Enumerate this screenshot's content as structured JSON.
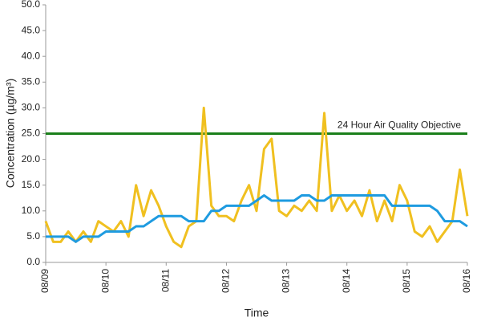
{
  "chart_data": {
    "type": "line",
    "y_label": "Concentration (µg/m³)",
    "x_label": "Time",
    "x": [
      0,
      3,
      6,
      9,
      12,
      15,
      18,
      21,
      24,
      27,
      30,
      33,
      36,
      39,
      42,
      45,
      48,
      51,
      54,
      57,
      60,
      63,
      66,
      69,
      72,
      75,
      78,
      81,
      84,
      87,
      90,
      93,
      96,
      99,
      102,
      105,
      108,
      111,
      114,
      117,
      120,
      123,
      126,
      129,
      132,
      135,
      138,
      141,
      144,
      147,
      150,
      153,
      156,
      159,
      162,
      165,
      168
    ],
    "series": [
      {
        "color": "#f0c020",
        "values": [
          8,
          4,
          4,
          6,
          4,
          6,
          4,
          8,
          7,
          6,
          8,
          5,
          15,
          9,
          14,
          11,
          7,
          4,
          3,
          7,
          8,
          30,
          11,
          9,
          9,
          8,
          12,
          15,
          10,
          22,
          24,
          10,
          9,
          11,
          10,
          12,
          10,
          29,
          10,
          13,
          10,
          12,
          9,
          14,
          8,
          12,
          8,
          15,
          12,
          6,
          5,
          7,
          4,
          6,
          8,
          18,
          9
        ]
      },
      {
        "color": "#1e9be0",
        "values": [
          5,
          5,
          5,
          5,
          4,
          5,
          5,
          5,
          6,
          6,
          6,
          6,
          7,
          7,
          8,
          9,
          9,
          9,
          9,
          8,
          8,
          8,
          10,
          10,
          11,
          11,
          11,
          11,
          12,
          13,
          12,
          12,
          12,
          12,
          13,
          13,
          12,
          12,
          13,
          13,
          13,
          13,
          13,
          13,
          13,
          13,
          11,
          11,
          11,
          11,
          11,
          11,
          10,
          8,
          8,
          8,
          7
        ]
      }
    ],
    "reference_line": {
      "value": 25,
      "label": "24 Hour Air Quality Objective",
      "color": "#1a7f1a"
    },
    "xlim": [
      0,
      168
    ],
    "xticks": [
      {
        "value": 0,
        "label": "08/09"
      },
      {
        "value": 24,
        "label": "08/10"
      },
      {
        "value": 48,
        "label": "08/11"
      },
      {
        "value": 72,
        "label": "08/12"
      },
      {
        "value": 96,
        "label": "08/13"
      },
      {
        "value": 120,
        "label": "08/14"
      },
      {
        "value": 144,
        "label": "08/15"
      },
      {
        "value": 168,
        "label": "08/16"
      }
    ],
    "ylim": [
      0,
      50
    ],
    "yticks": [
      {
        "value": 0,
        "label": "0.0"
      },
      {
        "value": 5,
        "label": "5.0"
      },
      {
        "value": 10,
        "label": "10.0"
      },
      {
        "value": 15,
        "label": "15.0"
      },
      {
        "value": 20,
        "label": "20.0"
      },
      {
        "value": 25,
        "label": "25.0"
      },
      {
        "value": 30,
        "label": "30.0"
      },
      {
        "value": 35,
        "label": "35.0"
      },
      {
        "value": 40,
        "label": "40.0"
      },
      {
        "value": 45,
        "label": "45.0"
      },
      {
        "value": 50,
        "label": "50.0"
      }
    ],
    "grid": false
  }
}
